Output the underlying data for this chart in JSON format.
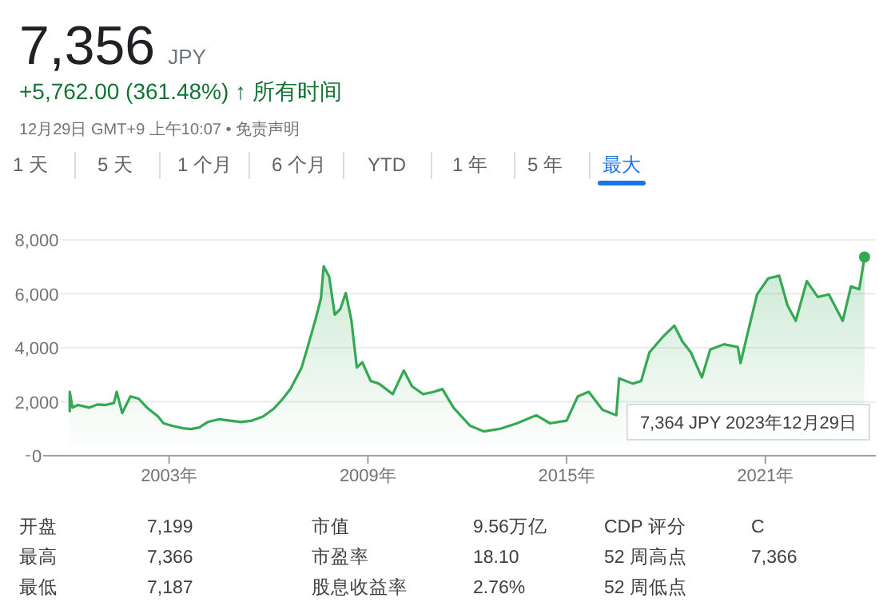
{
  "chart_data": {
    "type": "area",
    "title": "7,356",
    "subtitle": "+5,762.00 (361.48%) ↑ 所有时间",
    "color": "#34a853",
    "x": [
      "2000-01",
      "2000-01",
      "2000-02",
      "2000-04",
      "2000-08",
      "2000-11",
      "2001-02",
      "2001-05",
      "2001-06",
      "2001-08",
      "2001-11",
      "2002-02",
      "2002-05",
      "2002-09",
      "2002-11",
      "2003-02",
      "2003-06",
      "2003-09",
      "2003-12",
      "2004-03",
      "2004-07",
      "2004-11",
      "2005-03",
      "2005-07",
      "2005-11",
      "2006-03",
      "2006-06",
      "2006-09",
      "2007-01",
      "2007-03",
      "2007-06",
      "2007-08",
      "2007-09",
      "2007-11",
      "2008-01",
      "2008-03",
      "2008-05",
      "2008-07",
      "2008-09",
      "2008-11",
      "2009-02",
      "2009-05",
      "2009-10",
      "2010-02",
      "2010-05",
      "2010-09",
      "2011-01",
      "2011-04",
      "2011-08",
      "2012-02",
      "2012-07",
      "2013-01",
      "2013-07",
      "2014-02",
      "2014-07",
      "2015-01",
      "2015-05",
      "2015-09",
      "2016-02",
      "2016-07",
      "2016-08",
      "2017-01",
      "2017-04",
      "2017-07",
      "2017-12",
      "2018-04",
      "2018-07",
      "2018-10",
      "2019-02",
      "2019-05",
      "2019-10",
      "2020-03",
      "2020-04",
      "2020-07",
      "2020-10",
      "2021-02",
      "2021-06",
      "2021-09",
      "2021-12",
      "2022-04",
      "2022-08",
      "2022-12",
      "2023-05",
      "2023-08",
      "2023-11",
      "2023-12-29"
    ],
    "values": [
      1650,
      2370,
      1780,
      1880,
      1780,
      1900,
      1880,
      1950,
      2370,
      1580,
      2200,
      2110,
      1780,
      1450,
      1200,
      1110,
      1020,
      990,
      1050,
      1250,
      1350,
      1300,
      1250,
      1300,
      1450,
      1750,
      2090,
      2480,
      3270,
      3960,
      5040,
      5830,
      7020,
      6630,
      5230,
      5430,
      6030,
      5040,
      3270,
      3460,
      2770,
      2670,
      2280,
      3160,
      2570,
      2280,
      2370,
      2470,
      1780,
      1110,
      900,
      1000,
      1200,
      1500,
      1200,
      1300,
      2190,
      2370,
      1700,
      1500,
      2870,
      2670,
      2770,
      3830,
      4420,
      4820,
      4220,
      3830,
      2900,
      3930,
      4130,
      4030,
      3430,
      4720,
      5980,
      6570,
      6670,
      5570,
      5000,
      6470,
      5880,
      5980,
      5000,
      6270,
      6170,
      7364
    ],
    "xlim": [
      "1998-09",
      "2024-05"
    ],
    "xticks": [
      {
        "value": "2003-01-01",
        "label": "2003年"
      },
      {
        "value": "2009-01-01",
        "label": "2009年"
      },
      {
        "value": "2015-01-01",
        "label": "2015年"
      },
      {
        "value": "2021-01-01",
        "label": "2021年"
      }
    ],
    "ylim": [
      0,
      8000
    ],
    "yticks": [
      0,
      {
        "value": 2000,
        "label": "2,000"
      },
      {
        "value": 4000,
        "label": "4,000"
      },
      {
        "value": 6000,
        "label": "6,000"
      },
      {
        "value": 8000,
        "label": "8,000"
      }
    ],
    "grid": "y",
    "annotations": [
      "JPY",
      "12月29日 GMT+9 上午10:07 • 免责声明",
      "1 天",
      "5 天",
      "1 个月",
      "6 个月",
      "YTD",
      "1 年",
      "5 年",
      "最大",
      "7,364 JPY  2023年12月29日",
      "开盘",
      "7,199",
      "市值",
      "9.56万亿",
      "CDP 评分",
      "C",
      "最高",
      "7,366",
      "市盈率",
      "18.10",
      "52 周高点",
      "7,366",
      "最低",
      "7,187",
      "股息收益率",
      "2.76%",
      "52 周低点"
    ]
  }
}
